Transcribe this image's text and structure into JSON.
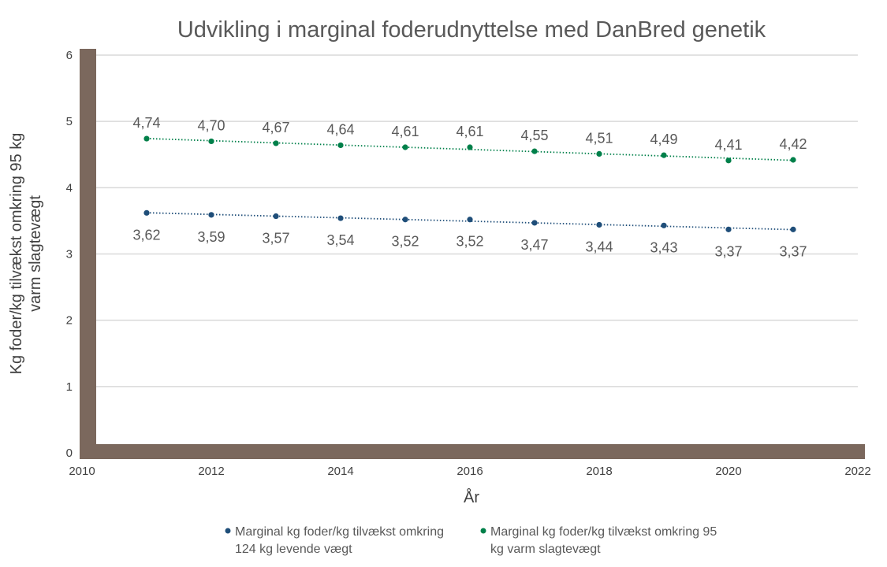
{
  "chart_data": {
    "type": "scatter",
    "title": "Udvikling i marginal foderudnyttelse med DanBred genetik",
    "xlabel": "År",
    "ylabel_lines": [
      "Kg foder/kg tilvækst omkring 95 kg",
      "varm slagtevægt"
    ],
    "xlim": [
      2010,
      2022
    ],
    "ylim": [
      0,
      6
    ],
    "x_ticks": [
      2010,
      2012,
      2014,
      2016,
      2018,
      2020,
      2022
    ],
    "y_ticks": [
      0,
      1,
      2,
      3,
      4,
      5,
      6
    ],
    "grid": true,
    "trendline": "linear, dotted",
    "legend_position": "bottom",
    "series": [
      {
        "name_lines": [
          "Marginal kg foder/kg tilvækst omkring",
          "124 kg levende vægt"
        ],
        "color": "#1f4e79",
        "label_position": "below",
        "x": [
          2011,
          2012,
          2013,
          2014,
          2015,
          2016,
          2017,
          2018,
          2019,
          2020,
          2021
        ],
        "y": [
          3.62,
          3.59,
          3.57,
          3.54,
          3.52,
          3.52,
          3.47,
          3.44,
          3.43,
          3.37,
          3.37
        ],
        "labels": [
          "3,62",
          "3,59",
          "3,57",
          "3,54",
          "3,52",
          "3,52",
          "3,47",
          "3,44",
          "3,43",
          "3,37",
          "3,37"
        ]
      },
      {
        "name_lines": [
          "Marginal kg foder/kg tilvækst omkring 95",
          "kg varm slagtevægt"
        ],
        "color": "#00804a",
        "label_position": "above",
        "x": [
          2011,
          2012,
          2013,
          2014,
          2015,
          2016,
          2017,
          2018,
          2019,
          2020,
          2021
        ],
        "y": [
          4.74,
          4.7,
          4.67,
          4.64,
          4.61,
          4.61,
          4.55,
          4.51,
          4.49,
          4.41,
          4.42
        ],
        "labels": [
          "4,74",
          "4,70",
          "4,67",
          "4,64",
          "4,61",
          "4,61",
          "4,55",
          "4,51",
          "4,49",
          "4,41",
          "4,42"
        ]
      }
    ],
    "colors": {
      "wall": "#7b685d",
      "grid": "#d9d9d9"
    }
  }
}
